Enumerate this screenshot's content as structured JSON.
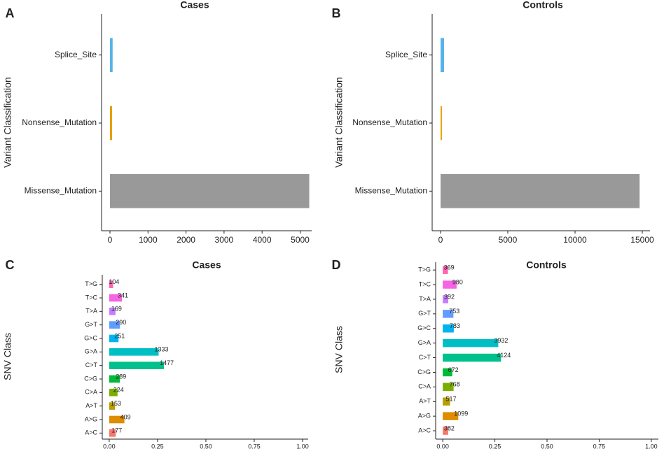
{
  "chart_data": [
    {
      "type": "bar",
      "orientation": "horizontal",
      "panel": "A",
      "title": "Cases",
      "y_label": "Variant Classification",
      "categories": [
        "Missense_Mutation",
        "Nonsense_Mutation",
        "Splice_Site"
      ],
      "values": [
        5240,
        55,
        70
      ],
      "colors": [
        "#999999",
        "#E69F00",
        "#56B4E9"
      ],
      "xlim": [
        -221,
        5304
      ],
      "xticks": [
        0,
        1000,
        2000,
        3000,
        4000,
        5000
      ]
    },
    {
      "type": "bar",
      "orientation": "horizontal",
      "panel": "B",
      "title": "Controls",
      "y_label": "Variant Classification",
      "categories": [
        "Missense_Mutation",
        "Nonsense_Mutation",
        "Splice_Site"
      ],
      "values": [
        14800,
        100,
        260
      ],
      "colors": [
        "#999999",
        "#E69F00",
        "#56B4E9"
      ],
      "xlim": [
        -625,
        15573
      ],
      "xticks": [
        0,
        5000,
        10000,
        15000
      ]
    },
    {
      "type": "bar",
      "orientation": "horizontal",
      "panel": "C",
      "title": "Cases",
      "y_label": "SNV Class",
      "categories": [
        "A>C",
        "A>G",
        "A>T",
        "C>A",
        "C>G",
        "C>T",
        "G>A",
        "G>C",
        "G>T",
        "T>A",
        "T>C",
        "T>G"
      ],
      "values": [
        0.0339,
        0.0784,
        0.0293,
        0.0429,
        0.0554,
        0.2831,
        0.2555,
        0.0481,
        0.0556,
        0.0324,
        0.0654,
        0.0199
      ],
      "counts": [
        177,
        409,
        153,
        224,
        289,
        1477,
        1333,
        251,
        290,
        169,
        341,
        104
      ],
      "colors": [
        "#F8766D",
        "#DE8C00",
        "#B79F00",
        "#7CAE00",
        "#00BA38",
        "#00C08B",
        "#00BFC4",
        "#00B4F0",
        "#619CFF",
        "#C77CFF",
        "#F564E3",
        "#FF64B0"
      ],
      "xlim": [
        -0.036,
        1.029
      ],
      "xticks": [
        {
          "value": 0,
          "label": "0.00"
        },
        {
          "value": 0.25,
          "label": "0.25"
        },
        {
          "value": 0.5,
          "label": "0.50"
        },
        {
          "value": 0.75,
          "label": "0.75"
        },
        {
          "value": 1,
          "label": "1.00"
        }
      ]
    },
    {
      "type": "bar",
      "orientation": "horizontal",
      "panel": "D",
      "title": "Controls",
      "y_label": "SNV Class",
      "categories": [
        "A>C",
        "A>G",
        "A>T",
        "C>A",
        "C>G",
        "C>T",
        "G>A",
        "G>C",
        "G>T",
        "T>A",
        "T>C",
        "T>G"
      ],
      "values": [
        0.0259,
        0.0744,
        0.035,
        0.052,
        0.0455,
        0.2792,
        0.2662,
        0.053,
        0.051,
        0.0265,
        0.0663,
        0.025
      ],
      "counts": [
        382,
        1099,
        517,
        768,
        672,
        4124,
        3932,
        783,
        753,
        392,
        980,
        369
      ],
      "colors": [
        "#F8766D",
        "#DE8C00",
        "#B79F00",
        "#7CAE00",
        "#00BA38",
        "#00C08B",
        "#00BFC4",
        "#00B4F0",
        "#619CFF",
        "#C77CFF",
        "#F564E3",
        "#FF64B0"
      ],
      "xlim": [
        -0.034,
        1.034
      ],
      "xticks": [
        {
          "value": 0,
          "label": "0.00"
        },
        {
          "value": 0.25,
          "label": "0.25"
        },
        {
          "value": 0.5,
          "label": "0.50"
        },
        {
          "value": 0.75,
          "label": "0.75"
        },
        {
          "value": 1,
          "label": "1.00"
        }
      ]
    }
  ]
}
